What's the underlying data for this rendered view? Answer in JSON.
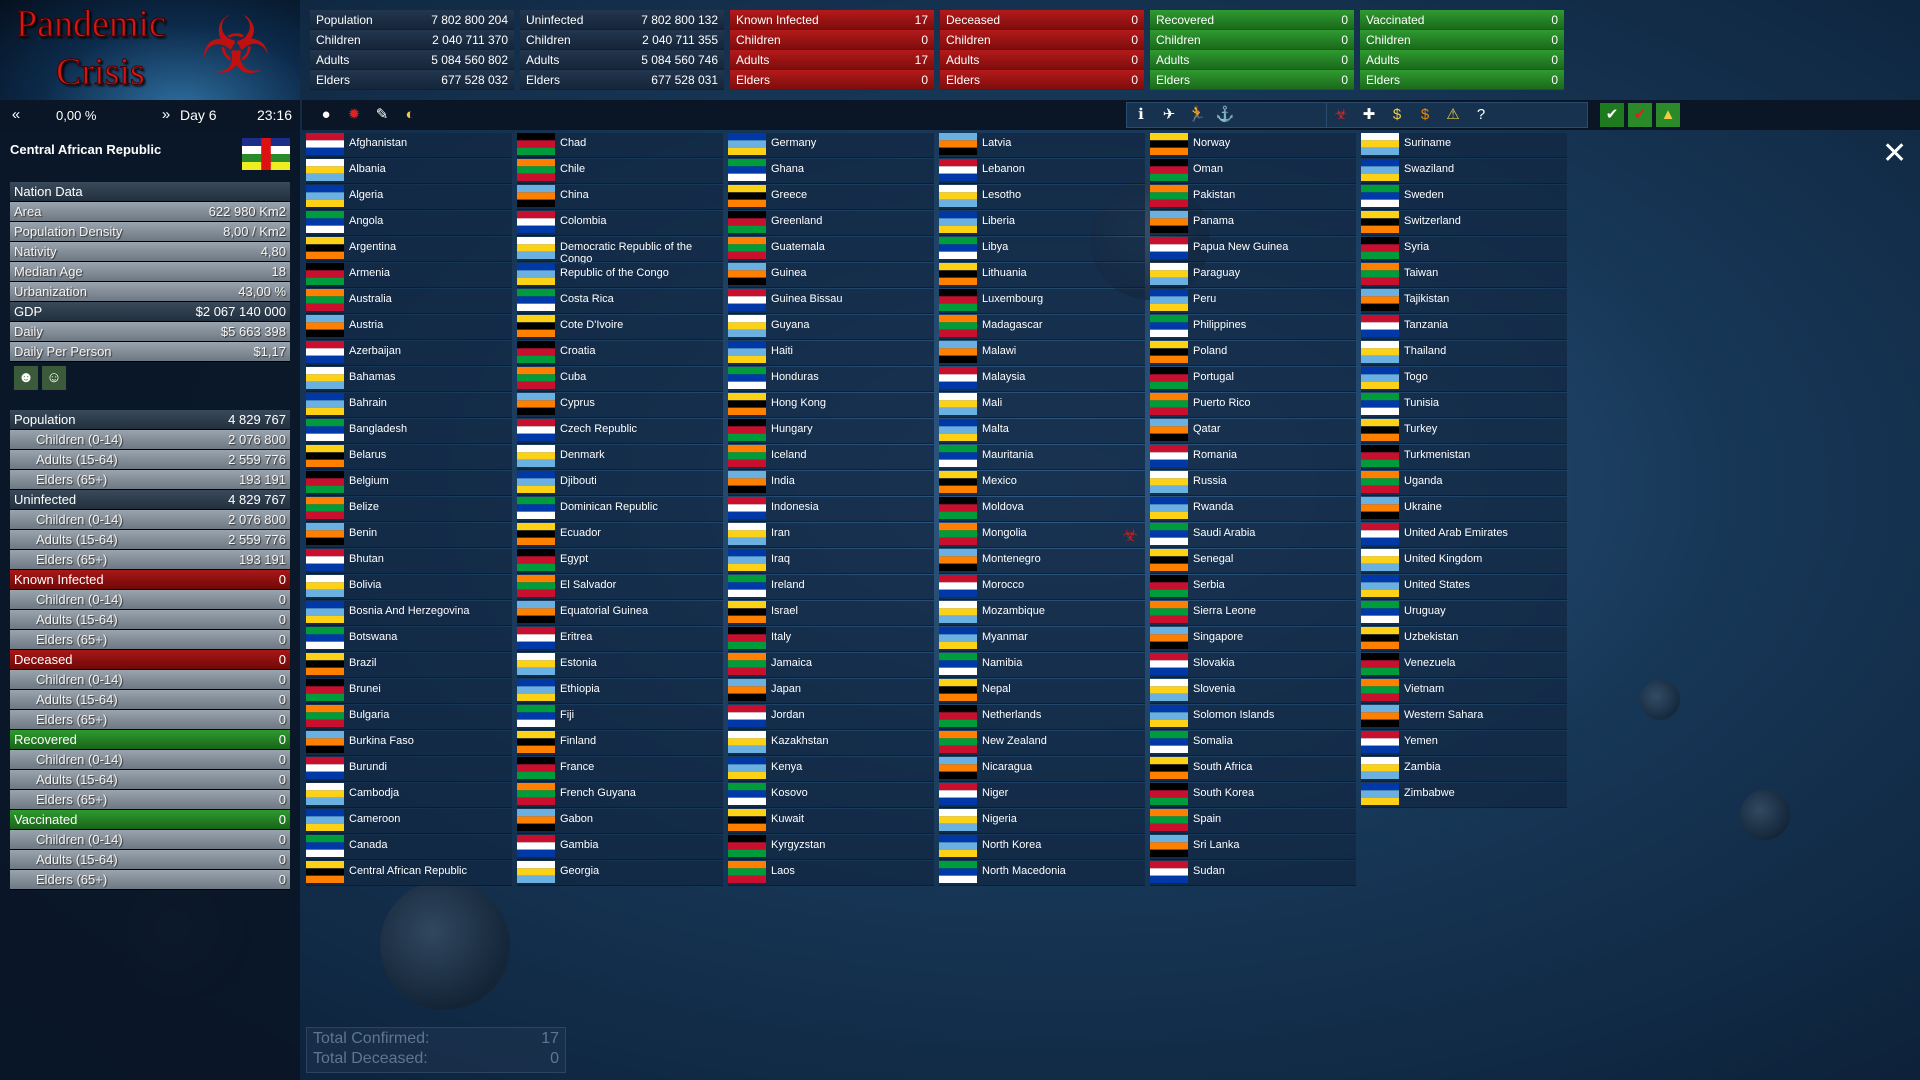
{
  "logo": {
    "line1": "Pandemic",
    "line2": "Crisis"
  },
  "top_stats": [
    {
      "theme": "blue",
      "rows": [
        [
          "Population",
          "7 802 800 204"
        ],
        [
          "Children",
          "2 040 711 370"
        ],
        [
          "Adults",
          "5 084 560 802"
        ],
        [
          "Elders",
          "677 528 032"
        ]
      ]
    },
    {
      "theme": "blue",
      "rows": [
        [
          "Uninfected",
          "7 802 800 132"
        ],
        [
          "Children",
          "2 040 711 355"
        ],
        [
          "Adults",
          "5 084 560 746"
        ],
        [
          "Elders",
          "677 528 031"
        ]
      ]
    },
    {
      "theme": "red",
      "rows": [
        [
          "Known Infected",
          "17"
        ],
        [
          "Children",
          "0"
        ],
        [
          "Adults",
          "17"
        ],
        [
          "Elders",
          "0"
        ]
      ]
    },
    {
      "theme": "red",
      "rows": [
        [
          "Deceased",
          "0"
        ],
        [
          "Children",
          "0"
        ],
        [
          "Adults",
          "0"
        ],
        [
          "Elders",
          "0"
        ]
      ]
    },
    {
      "theme": "green",
      "rows": [
        [
          "Recovered",
          "0"
        ],
        [
          "Children",
          "0"
        ],
        [
          "Adults",
          "0"
        ],
        [
          "Elders",
          "0"
        ]
      ]
    },
    {
      "theme": "green",
      "rows": [
        [
          "Vaccinated",
          "0"
        ],
        [
          "Children",
          "0"
        ],
        [
          "Adults",
          "0"
        ],
        [
          "Elders",
          "0"
        ]
      ]
    }
  ],
  "timebar": {
    "percent": "0,00 %",
    "day": "Day 6",
    "time": "23:16"
  },
  "panel": {
    "country": "Central African Republic",
    "nation": [
      [
        "Nation Data",
        ""
      ],
      [
        "Area",
        "622 980 Km2"
      ],
      [
        "Population Density",
        "8,00 / Km2"
      ],
      [
        "Nativity",
        "4,80"
      ],
      [
        "Median Age",
        "18"
      ],
      [
        "Urbanization",
        "43,00 %"
      ],
      [
        "GDP",
        "$2 067 140 000"
      ],
      [
        "Daily",
        "$5 663 398"
      ],
      [
        "Daily Per Person",
        "$1,17"
      ]
    ],
    "groups": [
      {
        "title": "Population",
        "value": "4 829 767",
        "rows": [
          [
            "Children (0-14)",
            "2 076 800"
          ],
          [
            "Adults (15-64)",
            "2 559 776"
          ],
          [
            "Elders (65+)",
            "193 191"
          ]
        ]
      },
      {
        "title": "Uninfected",
        "value": "4 829 767",
        "rows": [
          [
            "Children (0-14)",
            "2 076 800"
          ],
          [
            "Adults (15-64)",
            "2 559 776"
          ],
          [
            "Elders (65+)",
            "193 191"
          ]
        ]
      },
      {
        "title": "Known Infected",
        "value": "0",
        "rows": [
          [
            "Children (0-14)",
            "0"
          ],
          [
            "Adults (15-64)",
            "0"
          ],
          [
            "Elders (65+)",
            "0"
          ]
        ]
      },
      {
        "title": "Deceased",
        "value": "0",
        "rows": [
          [
            "Children (0-14)",
            "0"
          ],
          [
            "Adults (15-64)",
            "0"
          ],
          [
            "Elders (65+)",
            "0"
          ]
        ]
      },
      {
        "title": "Recovered",
        "value": "0",
        "rows": [
          [
            "Children (0-14)",
            "0"
          ],
          [
            "Adults (15-64)",
            "0"
          ],
          [
            "Elders (65+)",
            "0"
          ]
        ]
      },
      {
        "title": "Vaccinated",
        "value": "0",
        "rows": [
          [
            "Children (0-14)",
            "0"
          ],
          [
            "Adults (15-64)",
            "0"
          ],
          [
            "Elders (65+)",
            "0"
          ]
        ]
      }
    ]
  },
  "countries": [
    "Afghanistan",
    "Albania",
    "Algeria",
    "Angola",
    "Argentina",
    "Armenia",
    "Australia",
    "Austria",
    "Azerbaijan",
    "Bahamas",
    "Bahrain",
    "Bangladesh",
    "Belarus",
    "Belgium",
    "Belize",
    "Benin",
    "Bhutan",
    "Bolivia",
    "Bosnia And Herzegovina",
    "Botswana",
    "Brazil",
    "Brunei",
    "Bulgaria",
    "Burkina Faso",
    "Burundi",
    "Cambodja",
    "Cameroon",
    "Canada",
    "Central African Republic",
    "Chad",
    "Chile",
    "China",
    "Colombia",
    "Democratic Republic of the Congo",
    "Republic of the Congo",
    "Costa Rica",
    "Cote D'Ivoire",
    "Croatia",
    "Cuba",
    "Cyprus",
    "Czech Republic",
    "Denmark",
    "Djibouti",
    "Dominican Republic",
    "Ecuador",
    "Egypt",
    "El Salvador",
    "Equatorial Guinea",
    "Eritrea",
    "Estonia",
    "Ethiopia",
    "Fiji",
    "Finland",
    "France",
    "French Guyana",
    "Gabon",
    "Gambia",
    "Georgia",
    "Germany",
    "Ghana",
    "Greece",
    "Greenland",
    "Guatemala",
    "Guinea",
    "Guinea Bissau",
    "Guyana",
    "Haiti",
    "Honduras",
    "Hong Kong",
    "Hungary",
    "Iceland",
    "India",
    "Indonesia",
    "Iran",
    "Iraq",
    "Ireland",
    "Israel",
    "Italy",
    "Jamaica",
    "Japan",
    "Jordan",
    "Kazakhstan",
    "Kenya",
    "Kosovo",
    "Kuwait",
    "Kyrgyzstan",
    "Laos",
    "Latvia",
    "Lebanon",
    "Lesotho",
    "Liberia",
    "Libya",
    "Lithuania",
    "Luxembourg",
    "Madagascar",
    "Malawi",
    "Malaysia",
    "Mali",
    "Malta",
    "Mauritania",
    "Mexico",
    "Moldova",
    "Mongolia",
    "Montenegro",
    "Morocco",
    "Mozambique",
    "Myanmar",
    "Namibia",
    "Nepal",
    "Netherlands",
    "New Zealand",
    "Nicaragua",
    "Niger",
    "Nigeria",
    "North Korea",
    "North Macedonia",
    "Norway",
    "Oman",
    "Pakistan",
    "Panama",
    "Papua New Guinea",
    "Paraguay",
    "Peru",
    "Philippines",
    "Poland",
    "Portugal",
    "Puerto Rico",
    "Qatar",
    "Romania",
    "Russia",
    "Rwanda",
    "Saudi Arabia",
    "Senegal",
    "Serbia",
    "Sierra Leone",
    "Singapore",
    "Slovakia",
    "Slovenia",
    "Solomon Islands",
    "Somalia",
    "South Africa",
    "South Korea",
    "Spain",
    "Sri Lanka",
    "Sudan",
    "Suriname",
    "Swaziland",
    "Sweden",
    "Switzerland",
    "Syria",
    "Taiwan",
    "Tajikistan",
    "Tanzania",
    "Thailand",
    "Togo",
    "Tunisia",
    "Turkey",
    "Turkmenistan",
    "Uganda",
    "Ukraine",
    "United Arab Emirates",
    "United Kingdom",
    "United States",
    "Uruguay",
    "Uzbekistan",
    "Venezuela",
    "Vietnam",
    "Western Sahara",
    "Yemen",
    "Zambia",
    "Zimbabwe"
  ],
  "totals": [
    [
      "Total Confirmed:",
      "17"
    ],
    [
      "Total Deceased:",
      "0"
    ]
  ],
  "colors": {
    "red": "#b51a1a",
    "green": "#2f9a2f",
    "blue": "#16263a"
  }
}
